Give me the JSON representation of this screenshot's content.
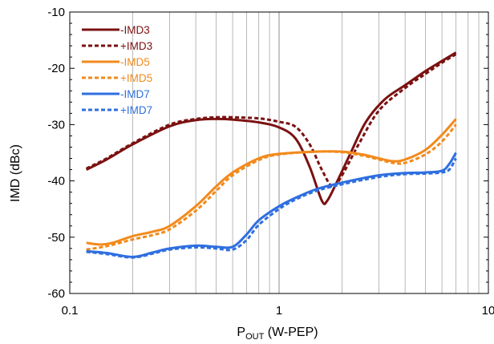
{
  "chart_data": {
    "type": "line",
    "xlabel_main": "P",
    "xlabel_sub": "OUT",
    "xlabel_rest": " (W-PEP)",
    "ylabel": "IMD (dBc)",
    "xscale": "log",
    "xlim": [
      0.1,
      10
    ],
    "ylim": [
      -60,
      -10
    ],
    "x_ticks": [
      {
        "value": 0.1,
        "label": "0.1"
      },
      {
        "value": 1,
        "label": "1"
      },
      {
        "value": 10,
        "label": "10"
      }
    ],
    "y_ticks": [
      {
        "value": -10,
        "label": "-10"
      },
      {
        "value": -20,
        "label": "-20"
      },
      {
        "value": -30,
        "label": "-30"
      },
      {
        "value": -40,
        "label": "-40"
      },
      {
        "value": -50,
        "label": "-50"
      },
      {
        "value": -60,
        "label": "-60"
      }
    ],
    "grid": {
      "vertical_minor": true,
      "horizontal": false
    },
    "legend_position": "top-left",
    "series": [
      {
        "name": "-IMD3",
        "color": "#7b1111",
        "dash": "solid",
        "points": [
          [
            0.12,
            -38
          ],
          [
            0.15,
            -36.2
          ],
          [
            0.2,
            -33.5
          ],
          [
            0.3,
            -30.3
          ],
          [
            0.4,
            -29.2
          ],
          [
            0.5,
            -29
          ],
          [
            0.6,
            -29.1
          ],
          [
            0.8,
            -29.6
          ],
          [
            1.0,
            -30.5
          ],
          [
            1.2,
            -32.5
          ],
          [
            1.4,
            -37.5
          ],
          [
            1.6,
            -43.5
          ],
          [
            1.7,
            -43.5
          ],
          [
            1.9,
            -40
          ],
          [
            2.2,
            -35
          ],
          [
            2.6,
            -29.5
          ],
          [
            3.2,
            -25.5
          ],
          [
            4.0,
            -23
          ],
          [
            5.0,
            -20.5
          ],
          [
            6.0,
            -18.7
          ],
          [
            7.0,
            -17.2
          ]
        ]
      },
      {
        "name": "+IMD3",
        "color": "#7b1111",
        "dash": "dashed",
        "points": [
          [
            0.12,
            -37.8
          ],
          [
            0.15,
            -36
          ],
          [
            0.2,
            -33.3
          ],
          [
            0.3,
            -30
          ],
          [
            0.4,
            -29
          ],
          [
            0.5,
            -28.7
          ],
          [
            0.6,
            -28.7
          ],
          [
            0.8,
            -28.9
          ],
          [
            1.0,
            -29.5
          ],
          [
            1.2,
            -30.4
          ],
          [
            1.4,
            -33.5
          ],
          [
            1.6,
            -38
          ],
          [
            1.8,
            -41
          ],
          [
            2.0,
            -39
          ],
          [
            2.4,
            -33.5
          ],
          [
            3.0,
            -27.5
          ],
          [
            4.0,
            -23.5
          ],
          [
            5.0,
            -21
          ],
          [
            6.0,
            -19
          ],
          [
            7.0,
            -17.5
          ]
        ]
      },
      {
        "name": "-IMD5",
        "color": "#f28a1c",
        "dash": "solid",
        "points": [
          [
            0.12,
            -51
          ],
          [
            0.14,
            -51.3
          ],
          [
            0.16,
            -51
          ],
          [
            0.2,
            -49.8
          ],
          [
            0.25,
            -49
          ],
          [
            0.3,
            -48
          ],
          [
            0.4,
            -44.5
          ],
          [
            0.5,
            -41
          ],
          [
            0.6,
            -38.5
          ],
          [
            0.8,
            -36
          ],
          [
            1.0,
            -35.2
          ],
          [
            1.5,
            -34.8
          ],
          [
            2.0,
            -34.8
          ],
          [
            2.5,
            -35.3
          ],
          [
            3.0,
            -36
          ],
          [
            3.5,
            -36.5
          ],
          [
            4.0,
            -36.2
          ],
          [
            5.0,
            -34.5
          ],
          [
            6.0,
            -31.8
          ],
          [
            7.0,
            -29
          ]
        ]
      },
      {
        "name": "+IMD5",
        "color": "#f28a1c",
        "dash": "dashed",
        "points": [
          [
            0.12,
            -52.2
          ],
          [
            0.15,
            -51.6
          ],
          [
            0.2,
            -50.4
          ],
          [
            0.25,
            -49.6
          ],
          [
            0.3,
            -48.6
          ],
          [
            0.4,
            -45.3
          ],
          [
            0.5,
            -41.8
          ],
          [
            0.6,
            -39
          ],
          [
            0.8,
            -36.3
          ],
          [
            1.0,
            -35.3
          ],
          [
            1.5,
            -34.8
          ],
          [
            2.0,
            -34.9
          ],
          [
            2.5,
            -35.5
          ],
          [
            3.0,
            -36.2
          ],
          [
            3.5,
            -36.8
          ],
          [
            4.0,
            -36.8
          ],
          [
            5.0,
            -35.3
          ],
          [
            6.0,
            -33
          ],
          [
            7.0,
            -30
          ]
        ]
      },
      {
        "name": "-IMD7",
        "color": "#2f6fe0",
        "dash": "solid",
        "points": [
          [
            0.12,
            -52.5
          ],
          [
            0.15,
            -52.8
          ],
          [
            0.2,
            -53.5
          ],
          [
            0.25,
            -52.7
          ],
          [
            0.3,
            -52
          ],
          [
            0.4,
            -51.5
          ],
          [
            0.5,
            -51.7
          ],
          [
            0.6,
            -51.7
          ],
          [
            0.7,
            -49.5
          ],
          [
            0.8,
            -47
          ],
          [
            1.0,
            -44.5
          ],
          [
            1.2,
            -43
          ],
          [
            1.5,
            -41.5
          ],
          [
            2.0,
            -40.3
          ],
          [
            3.0,
            -39
          ],
          [
            4.0,
            -38.6
          ],
          [
            5.0,
            -38.5
          ],
          [
            6.0,
            -38.2
          ],
          [
            6.5,
            -37
          ],
          [
            7.0,
            -35
          ]
        ]
      },
      {
        "name": "+IMD7",
        "color": "#2f6fe0",
        "dash": "dashed",
        "points": [
          [
            0.12,
            -52.6
          ],
          [
            0.15,
            -53
          ],
          [
            0.2,
            -53.6
          ],
          [
            0.25,
            -52.9
          ],
          [
            0.3,
            -52.2
          ],
          [
            0.4,
            -51.8
          ],
          [
            0.5,
            -52
          ],
          [
            0.6,
            -52.2
          ],
          [
            0.7,
            -50.5
          ],
          [
            0.8,
            -47.8
          ],
          [
            1.0,
            -45
          ],
          [
            1.2,
            -43.3
          ],
          [
            1.5,
            -41.8
          ],
          [
            2.0,
            -40.6
          ],
          [
            3.0,
            -39.3
          ],
          [
            4.0,
            -38.8
          ],
          [
            5.0,
            -38.7
          ],
          [
            6.0,
            -38.5
          ],
          [
            6.5,
            -38
          ],
          [
            7.0,
            -36
          ]
        ]
      }
    ]
  }
}
